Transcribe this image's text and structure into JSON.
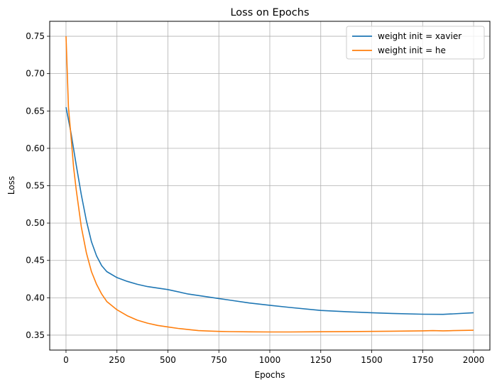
{
  "chart_data": {
    "type": "line",
    "title": "Loss on Epochs",
    "xlabel": "Epochs",
    "ylabel": "Loss",
    "xlim": [
      -80,
      2080
    ],
    "ylim": [
      0.33,
      0.77
    ],
    "x_ticks": [
      0,
      250,
      500,
      750,
      1000,
      1250,
      1500,
      1750,
      2000
    ],
    "x_tick_labels": [
      "0",
      "250",
      "500",
      "750",
      "1000",
      "1250",
      "1500",
      "1750",
      "2000"
    ],
    "y_ticks": [
      0.35,
      0.4,
      0.45,
      0.5,
      0.55,
      0.6,
      0.65,
      0.7,
      0.75
    ],
    "y_tick_labels": [
      "0.35",
      "0.40",
      "0.45",
      "0.50",
      "0.55",
      "0.60",
      "0.65",
      "0.70",
      "0.75"
    ],
    "grid": true,
    "legend_position": "top-right",
    "series": [
      {
        "name": "weight init = xavier",
        "color": "#1f77b4",
        "x": [
          0,
          25,
          50,
          75,
          100,
          125,
          150,
          175,
          200,
          250,
          300,
          350,
          400,
          450,
          500,
          600,
          700,
          750,
          800,
          900,
          1000,
          1100,
          1250,
          1400,
          1500,
          1600,
          1750,
          1850,
          1900,
          2000
        ],
        "values": [
          0.655,
          0.62,
          0.578,
          0.538,
          0.503,
          0.475,
          0.456,
          0.443,
          0.435,
          0.427,
          0.422,
          0.418,
          0.415,
          0.413,
          0.411,
          0.405,
          0.401,
          0.399,
          0.397,
          0.393,
          0.39,
          0.387,
          0.383,
          0.381,
          0.38,
          0.379,
          0.378,
          0.3778,
          0.3785,
          0.38
        ]
      },
      {
        "name": "weight init = he",
        "color": "#ff7f0e",
        "x": [
          0,
          12,
          25,
          37,
          50,
          75,
          100,
          125,
          150,
          175,
          200,
          250,
          300,
          350,
          400,
          450,
          500,
          550,
          600,
          650,
          700,
          750,
          800,
          900,
          1000,
          1100,
          1250,
          1400,
          1500,
          1600,
          1750,
          1800,
          1850,
          1900,
          2000
        ],
        "values": [
          0.75,
          0.655,
          0.615,
          0.575,
          0.545,
          0.495,
          0.46,
          0.435,
          0.418,
          0.405,
          0.395,
          0.384,
          0.376,
          0.37,
          0.366,
          0.363,
          0.361,
          0.359,
          0.3575,
          0.356,
          0.3555,
          0.355,
          0.3547,
          0.3544,
          0.3542,
          0.3542,
          0.3545,
          0.3548,
          0.355,
          0.3553,
          0.3558,
          0.356,
          0.3558,
          0.356,
          0.3565
        ]
      }
    ]
  }
}
